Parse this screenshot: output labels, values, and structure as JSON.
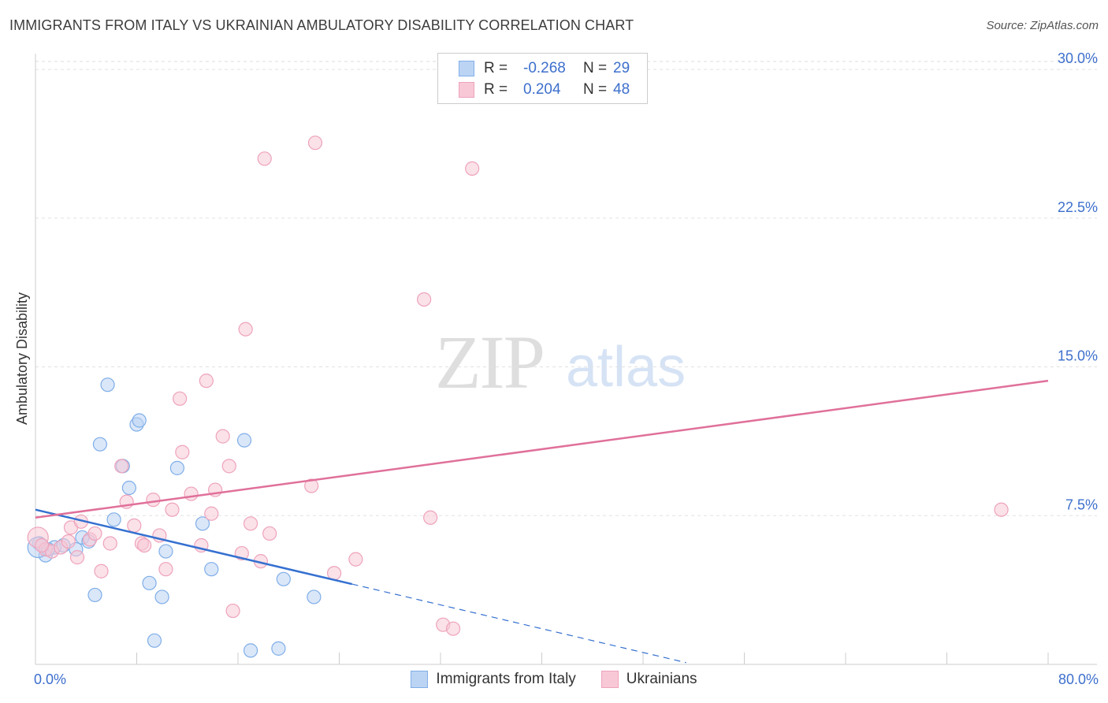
{
  "title": "IMMIGRANTS FROM ITALY VS UKRAINIAN AMBULATORY DISABILITY CORRELATION CHART",
  "source": "Source: ZipAtlas.com",
  "watermark": {
    "zip": "ZIP",
    "atlas": "atlas"
  },
  "legend": {
    "r_label": "R =",
    "n_label": "N =",
    "series": [
      {
        "name": "Immigrants from Italy",
        "r": "-0.268",
        "n": "29"
      },
      {
        "name": "Ukrainians",
        "r": "0.204",
        "n": "48"
      }
    ]
  },
  "colors": {
    "italy_fill": "#bcd4f4",
    "italy_stroke": "#7faee8",
    "italy_line": "#3570d0",
    "ukr_fill": "#f8c8d6",
    "ukr_stroke": "#eea3bb",
    "ukr_line": "#e0709a",
    "tick_text": "#3d6fcc"
  },
  "chart_data": {
    "type": "scatter",
    "title": "IMMIGRANTS FROM ITALY VS UKRAINIAN AMBULATORY DISABILITY CORRELATION CHART",
    "ylabel": "Ambulatory Disability",
    "xlabel": "",
    "xlim": [
      0,
      80
    ],
    "ylim": [
      0,
      30.4
    ],
    "x_tick_labels": {
      "left": "0.0%",
      "right": "80.0%"
    },
    "y_ticks": [
      {
        "value": 7.5,
        "label": "7.5%"
      },
      {
        "value": 15.0,
        "label": "15.0%"
      },
      {
        "value": 22.5,
        "label": "22.5%"
      },
      {
        "value": 30.0,
        "label": "30.0%"
      }
    ],
    "series": [
      {
        "name": "Immigrants from Italy",
        "points": [
          [
            0.3,
            6.1
          ],
          [
            0.8,
            5.5
          ],
          [
            1.5,
            5.9
          ],
          [
            2.2,
            6.0
          ],
          [
            3.2,
            5.8
          ],
          [
            3.7,
            6.4
          ],
          [
            4.2,
            6.2
          ],
          [
            4.7,
            3.5
          ],
          [
            5.1,
            11.1
          ],
          [
            5.7,
            14.1
          ],
          [
            6.2,
            7.3
          ],
          [
            6.9,
            10.0
          ],
          [
            7.4,
            8.9
          ],
          [
            8.0,
            12.1
          ],
          [
            8.2,
            12.3
          ],
          [
            9.0,
            4.1
          ],
          [
            9.4,
            1.2
          ],
          [
            10.0,
            3.4
          ],
          [
            10.3,
            5.7
          ],
          [
            11.2,
            9.9
          ],
          [
            13.2,
            7.1
          ],
          [
            13.9,
            4.8
          ],
          [
            16.5,
            11.3
          ],
          [
            17.0,
            0.7
          ],
          [
            19.2,
            0.8
          ],
          [
            19.6,
            4.3
          ],
          [
            22.0,
            3.4
          ],
          [
            0.2,
            5.9
          ],
          [
            1.0,
            5.8
          ]
        ],
        "trend": {
          "x0": 0,
          "y0": 7.8,
          "x1": 25,
          "y1": 4.05,
          "dash_to_x": 51.4
        }
      },
      {
        "name": "Ukrainians",
        "points": [
          [
            0.2,
            6.4
          ],
          [
            0.8,
            5.8
          ],
          [
            1.3,
            5.7
          ],
          [
            2.0,
            5.9
          ],
          [
            2.6,
            6.2
          ],
          [
            2.8,
            6.9
          ],
          [
            3.3,
            5.4
          ],
          [
            3.6,
            7.2
          ],
          [
            4.3,
            6.3
          ],
          [
            4.7,
            6.6
          ],
          [
            5.2,
            4.7
          ],
          [
            5.9,
            6.1
          ],
          [
            6.8,
            10.0
          ],
          [
            7.2,
            8.2
          ],
          [
            7.8,
            7.0
          ],
          [
            8.4,
            6.1
          ],
          [
            8.6,
            6.0
          ],
          [
            9.3,
            8.3
          ],
          [
            9.8,
            6.5
          ],
          [
            10.3,
            4.8
          ],
          [
            10.8,
            7.8
          ],
          [
            11.4,
            13.4
          ],
          [
            11.6,
            10.7
          ],
          [
            12.3,
            8.6
          ],
          [
            13.1,
            6.0
          ],
          [
            13.5,
            14.3
          ],
          [
            13.9,
            7.6
          ],
          [
            14.2,
            8.8
          ],
          [
            14.8,
            11.5
          ],
          [
            15.3,
            10.0
          ],
          [
            15.6,
            2.7
          ],
          [
            16.3,
            5.6
          ],
          [
            16.6,
            16.9
          ],
          [
            17.0,
            7.1
          ],
          [
            17.8,
            5.2
          ],
          [
            18.1,
            25.5
          ],
          [
            18.5,
            6.6
          ],
          [
            21.8,
            9.0
          ],
          [
            22.1,
            26.3
          ],
          [
            23.6,
            4.6
          ],
          [
            25.3,
            5.3
          ],
          [
            30.7,
            18.4
          ],
          [
            31.2,
            7.4
          ],
          [
            32.2,
            2.0
          ],
          [
            33.0,
            1.8
          ],
          [
            34.5,
            25.0
          ],
          [
            76.3,
            7.8
          ],
          [
            0.5,
            6.0
          ]
        ],
        "trend": {
          "x0": 0,
          "y0": 7.4,
          "x1": 80,
          "y1": 14.3
        }
      }
    ]
  }
}
